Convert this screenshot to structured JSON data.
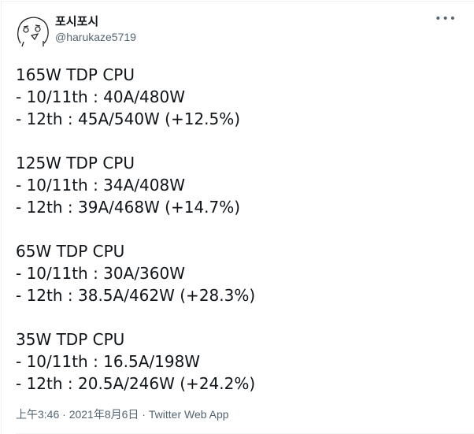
{
  "author": {
    "name": "포시포시",
    "handle": "@harukaze5719"
  },
  "menu_icon": "more-horizontal-icon",
  "tweet": {
    "sections": [
      {
        "lines": [
          "165W TDP CPU",
          "- 10/11th : 40A/480W",
          "- 12th : 45A/540W (+12.5%)"
        ]
      },
      {
        "lines": [
          "125W TDP CPU",
          "- 10/11th : 34A/408W",
          "- 12th : 39A/468W (+14.7%)"
        ]
      },
      {
        "lines": [
          "65W TDP CPU",
          "- 10/11th : 30A/360W",
          "- 12th : 38.5A/462W (+28.3%)"
        ]
      },
      {
        "lines": [
          "35W TDP CPU",
          "- 10/11th : 16.5A/198W",
          "- 12th : 20.5A/246W (+24.2%)"
        ]
      }
    ]
  },
  "footer": {
    "time": "上午3:46",
    "date": "2021年8月6日",
    "source": "Twitter Web App",
    "separator": " · "
  }
}
